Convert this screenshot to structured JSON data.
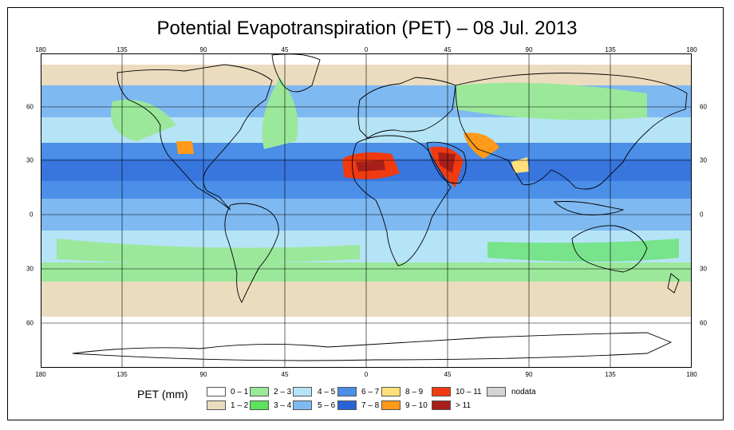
{
  "title": "Potential Evapotranspiration (PET) – 08 Jul. 2013",
  "lon_labels": [
    "180",
    "135",
    "90",
    "45",
    "0",
    "45",
    "90",
    "135",
    "180"
  ],
  "lat_labels": [
    "60",
    "30",
    "0",
    "30",
    "60"
  ],
  "legend": {
    "title": "PET (mm)",
    "items": [
      {
        "label": "0 – 1",
        "color": "#ffffff"
      },
      {
        "label": "1 – 2",
        "color": "#ecdcbf"
      },
      {
        "label": "2 – 3",
        "color": "#9be89b"
      },
      {
        "label": "3 – 4",
        "color": "#5ce35c"
      },
      {
        "label": "4 – 5",
        "color": "#b5e4f7"
      },
      {
        "label": "5 – 6",
        "color": "#7fb9f1"
      },
      {
        "label": "6 – 7",
        "color": "#4b8fe8"
      },
      {
        "label": "7 – 8",
        "color": "#2a63d6"
      },
      {
        "label": "8 – 9",
        "color": "#ffe07a"
      },
      {
        "label": "9 – 10",
        "color": "#ff9a1a"
      },
      {
        "label": "10 – 11",
        "color": "#f03a10"
      },
      {
        "label": "> 11",
        "color": "#a81f1a"
      },
      {
        "label": "nodata",
        "color": "#d4d4d4"
      }
    ]
  }
}
